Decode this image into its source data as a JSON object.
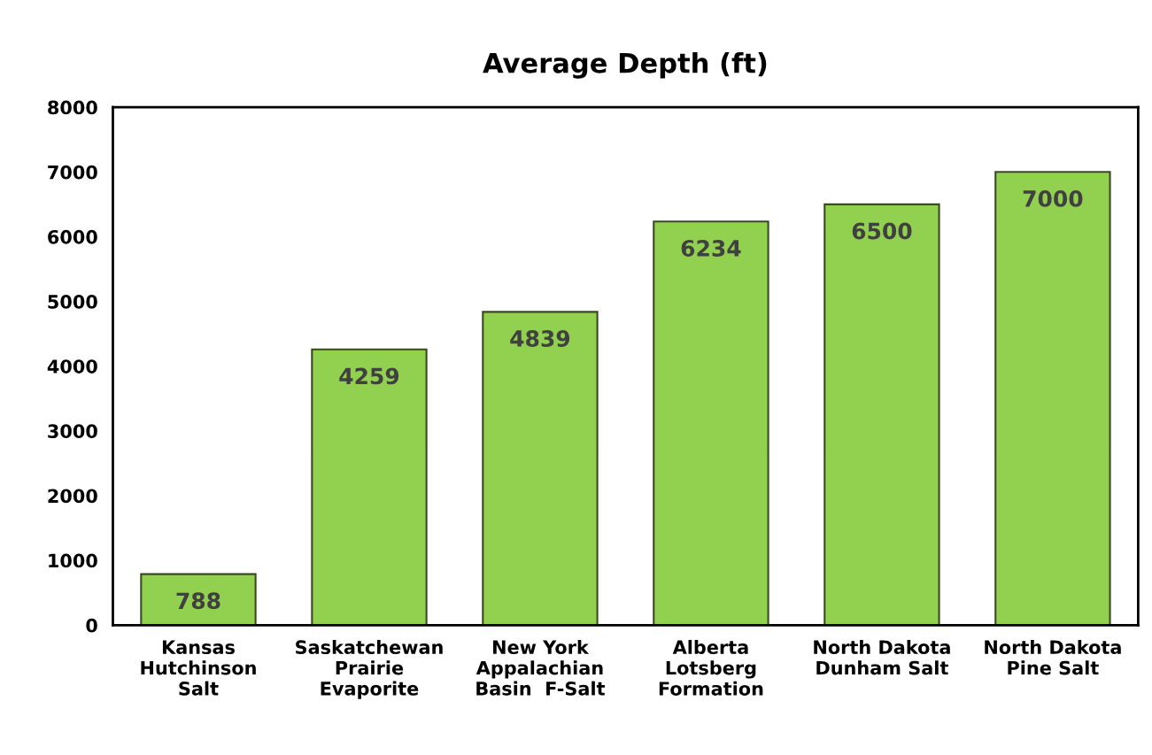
{
  "chart_data": {
    "type": "bar",
    "title": "Average Depth (ft)",
    "categories": [
      "Kansas\nHutchinson\nSalt",
      "Saskatchewan\nPrairie\nEvaporite",
      "New York\nAppalachian\nBasin  F-Salt",
      "Alberta\nLotsberg\nFormation",
      "North Dakota\nDunham Salt",
      "North Dakota\nPine Salt"
    ],
    "values": [
      788,
      4259,
      4839,
      6234,
      6500,
      7000
    ],
    "color": "#92d050",
    "ylim": [
      0,
      8000
    ],
    "yticks": [
      0,
      1000,
      2000,
      3000,
      4000,
      5000,
      6000,
      7000,
      8000
    ],
    "grid": false,
    "data_labels": true
  }
}
